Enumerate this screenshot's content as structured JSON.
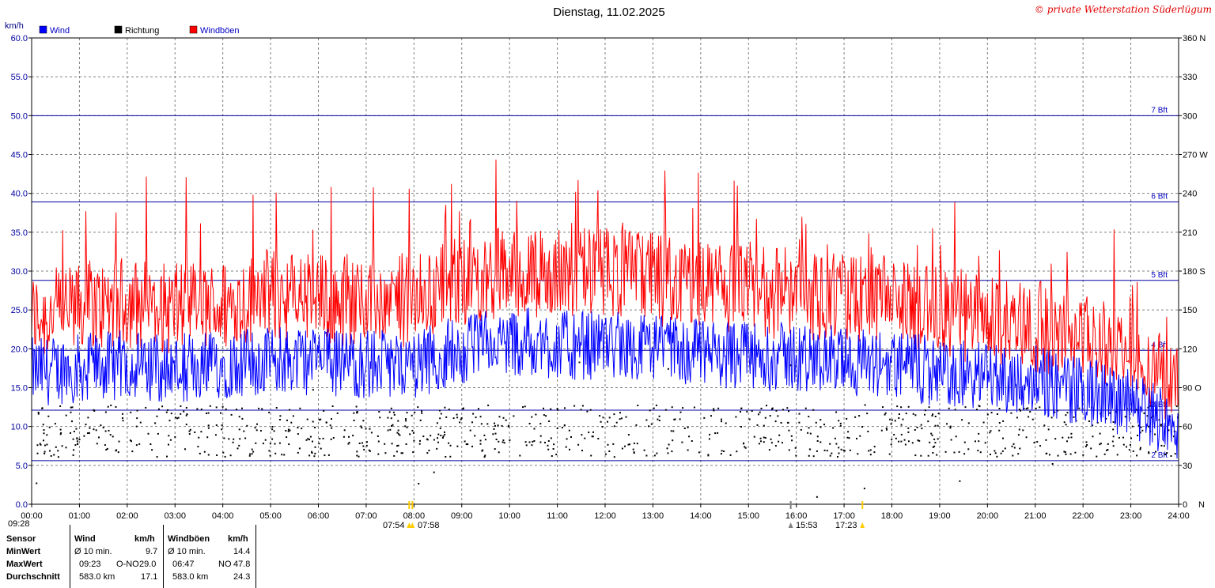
{
  "chart_data": {
    "type": "line",
    "title": "Dienstag, 11.02.2025",
    "credit": "© private Wetterstation Süderlügum",
    "ylabel": "km/h",
    "ylim": [
      0,
      60
    ],
    "y_ticks": [
      "0.0",
      "5.0",
      "10.0",
      "15.0",
      "20.0",
      "25.0",
      "30.0",
      "35.0",
      "40.0",
      "45.0",
      "50.0",
      "55.0",
      "60.0"
    ],
    "y2_ticks": [
      "0",
      "30",
      "60",
      "90 O",
      "120",
      "150",
      "180 S",
      "210",
      "240",
      "270 W",
      "300",
      "330",
      "360 N"
    ],
    "y2_first_suffix": "N",
    "xlim": [
      0,
      24
    ],
    "x_ticks": [
      "00:00",
      "01:00",
      "02:00",
      "03:00",
      "04:00",
      "05:00",
      "06:00",
      "07:00",
      "08:00",
      "09:00",
      "10:00",
      "11:00",
      "12:00",
      "13:00",
      "14:00",
      "15:00",
      "16:00",
      "17:00",
      "18:00",
      "19:00",
      "20:00",
      "21:00",
      "22:00",
      "23:00",
      "24:00"
    ],
    "legend": [
      {
        "name": "Wind",
        "color": "#0000ff"
      },
      {
        "name": "Richtung",
        "color": "#000000"
      },
      {
        "name": "Windböen",
        "color": "#ff0000"
      }
    ],
    "beaufort_lines": [
      {
        "label": "2 Bft",
        "value": 5.6
      },
      {
        "label": "3 Bft",
        "value": 12.1
      },
      {
        "label": "4 Bft",
        "value": 19.8
      },
      {
        "label": "5 Bft",
        "value": 28.8
      },
      {
        "label": "6 Bft",
        "value": 38.9
      },
      {
        "label": "7 Bft",
        "value": 50.0
      }
    ],
    "series_profile": {
      "wind_hours": [
        0,
        1,
        2,
        3,
        4,
        5,
        6,
        7,
        8,
        9,
        10,
        11,
        12,
        13,
        14,
        15,
        16,
        17,
        18,
        19,
        20,
        21,
        22,
        23,
        24
      ],
      "wind_mean": [
        17,
        17.5,
        18,
        17.5,
        18,
        18.5,
        18.5,
        18,
        18,
        20,
        21,
        20.5,
        20.5,
        20,
        19.5,
        19,
        19,
        18.5,
        18,
        17,
        16.5,
        16,
        14.5,
        13,
        10
      ],
      "gust_mean": [
        24,
        25,
        26,
        25,
        25.5,
        27,
        26.5,
        26,
        26,
        29,
        30,
        29.5,
        30,
        29,
        28,
        27.5,
        27,
        26.5,
        26,
        24.5,
        23.5,
        23,
        21,
        19,
        15
      ],
      "direction_mean_deg": 57
    },
    "markers": [
      {
        "time": "07:54",
        "color": "#ffcc00"
      },
      {
        "time": "07:58",
        "color": "#ffcc00"
      },
      {
        "time": "15:53",
        "color": "#808080"
      },
      {
        "time": "17:23",
        "color": "#ffcc00"
      }
    ],
    "bottom_left_time": "09:28",
    "marker_labels": {
      "sunrise": "07:54",
      "sunrise2": "07:58",
      "sunset": "15:53",
      "sunset2": "17:23"
    }
  },
  "stats": {
    "headers": [
      "Sensor",
      "Wind",
      "km/h",
      "Windböen",
      "km/h"
    ],
    "rows": [
      {
        "label": "MinWert",
        "wind_time": "Ø 10 min.",
        "wind_dir": "",
        "wind_val": "9.7",
        "gust_time": "Ø 10 min.",
        "gust_dir": "",
        "gust_val": "14.4"
      },
      {
        "label": "MaxWert",
        "wind_time": "09:23",
        "wind_dir": "O-NO",
        "wind_val": "29.0",
        "gust_time": "06:47",
        "gust_dir": "NO",
        "gust_val": "47.8"
      },
      {
        "label": "Durchschnitt",
        "wind_time": "583.0 km",
        "wind_dir": "",
        "wind_val": "17.1",
        "gust_time": "583.0 km",
        "gust_dir": "",
        "gust_val": "24.3"
      }
    ]
  }
}
